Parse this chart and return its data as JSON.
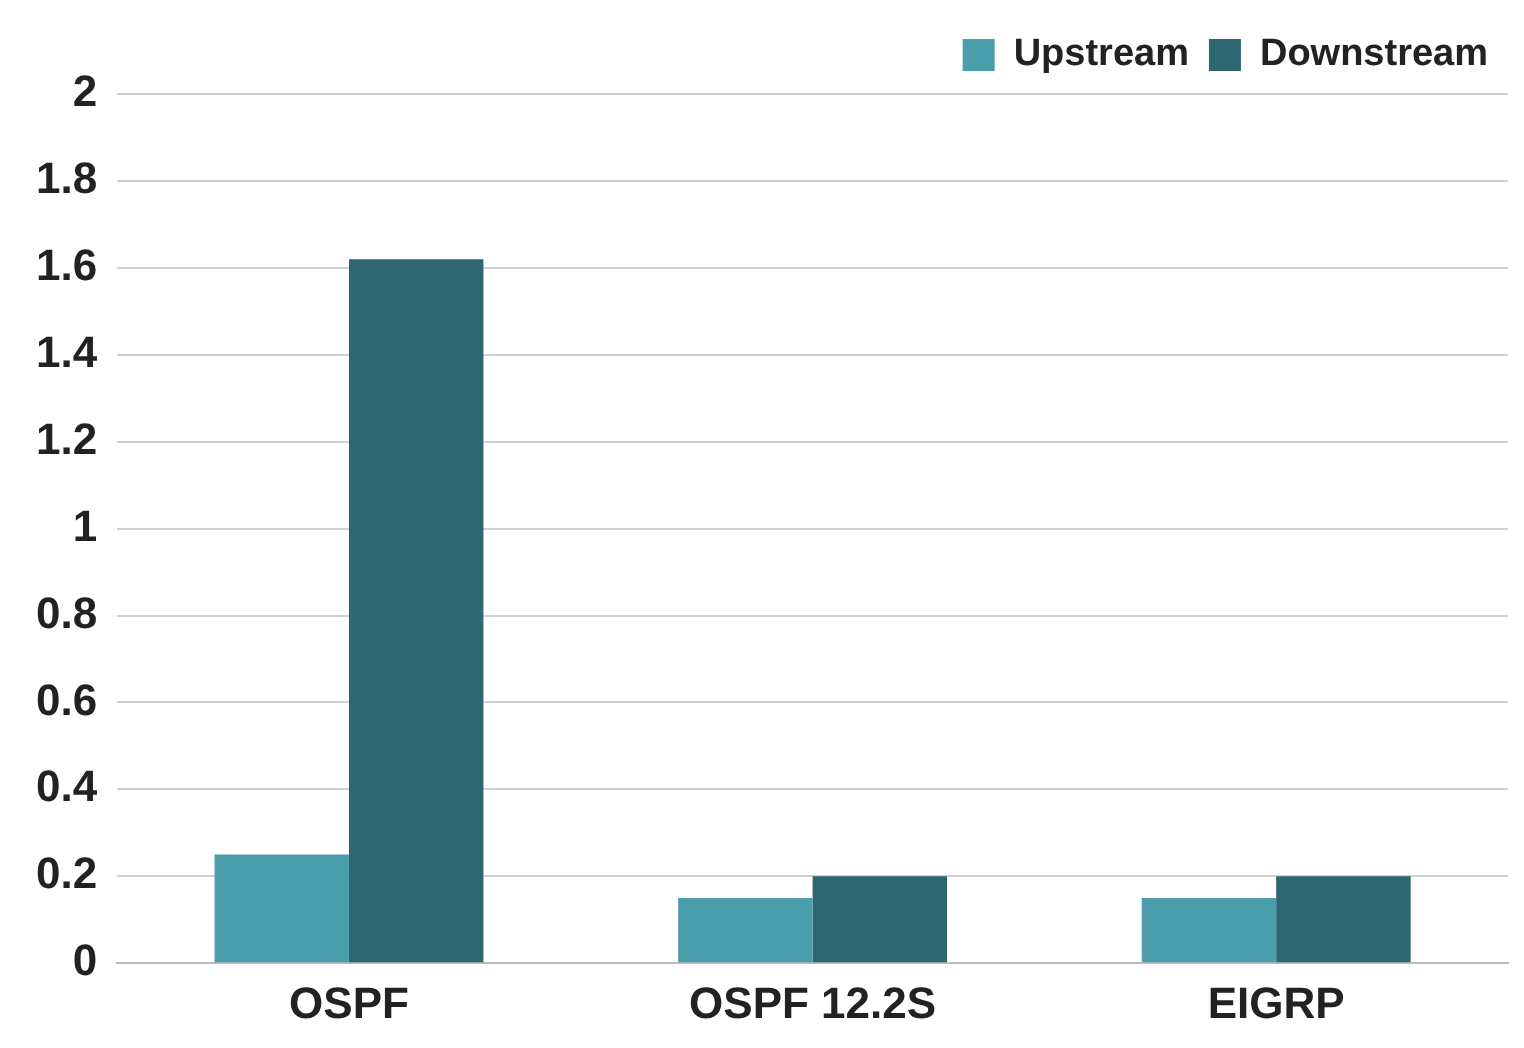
{
  "chart_data": {
    "type": "bar",
    "categories": [
      "OSPF",
      "OSPF 12.2S",
      "EIGRP"
    ],
    "series": [
      {
        "name": "Upstream",
        "color": "#4a9dab",
        "values": [
          0.25,
          0.15,
          0.15
        ]
      },
      {
        "name": "Downstream",
        "color": "#2f6673",
        "values": [
          1.62,
          0.2,
          0.2
        ]
      }
    ],
    "ylim": [
      0,
      2
    ],
    "yticks": [
      0,
      {
        "value": 0.2,
        "label": "0.2"
      },
      {
        "value": 0.4,
        "label": "0.4"
      },
      {
        "value": 0.6,
        "label": "0.6"
      },
      {
        "value": 0.8,
        "label": "0.8"
      },
      1,
      {
        "value": 1.2,
        "label": "1.2"
      },
      {
        "value": 1.4,
        "label": "1.4"
      },
      {
        "value": 1.6,
        "label": "1.6"
      },
      {
        "value": 1.8,
        "label": "1.8"
      },
      2
    ],
    "grid": "y",
    "legend": "top right"
  }
}
